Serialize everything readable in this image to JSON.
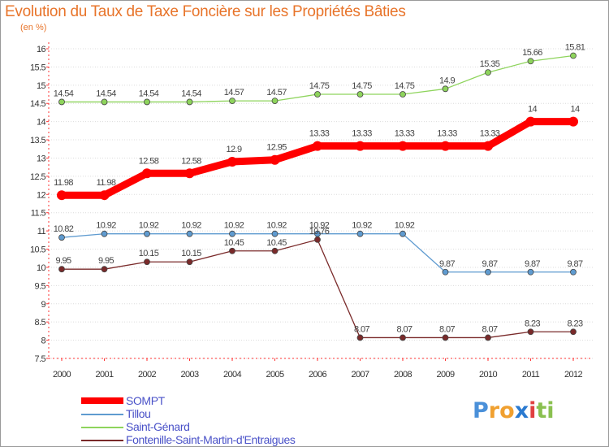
{
  "chart_data": {
    "type": "line",
    "title": "Evolution du Taux de Taxe Foncière sur les Propriétés Bâties",
    "subtitle": "(en %)",
    "ylim": [
      7.5,
      16
    ],
    "yticks": [
      7.5,
      8,
      8.5,
      9,
      9.5,
      10,
      10.5,
      11,
      11.5,
      12,
      12.5,
      13,
      13.5,
      14,
      14.5,
      15,
      15.5,
      16
    ],
    "x": [
      "2000",
      "2001",
      "2002",
      "2003",
      "2004",
      "2005",
      "2006",
      "2007",
      "2008",
      "2009",
      "2010",
      "2011",
      "2012"
    ],
    "series": [
      {
        "name": "SOMPT",
        "color": "#ff0000",
        "values": [
          11.98,
          11.98,
          12.58,
          12.58,
          12.9,
          12.95,
          13.33,
          13.33,
          13.33,
          13.33,
          13.33,
          14,
          14
        ],
        "labels": [
          "11.98",
          "11.98",
          "12.58",
          "12.58",
          "12.9",
          "12.95",
          "13.33",
          "13.33",
          "13.33",
          "13.33",
          "13.33",
          "14",
          "14"
        ]
      },
      {
        "name": "Tillou",
        "color": "#5f9bd0",
        "values": [
          10.82,
          10.92,
          10.92,
          10.92,
          10.92,
          10.92,
          10.92,
          10.92,
          10.92,
          9.87,
          9.87,
          9.87,
          9.87
        ],
        "labels": [
          "10.82",
          "10.92",
          "10.92",
          "10.92",
          "10.92",
          "10.92",
          "10.92",
          "10.92",
          "10.92",
          "9.87",
          "9.87",
          "9.87",
          "9.87"
        ]
      },
      {
        "name": "Saint-Génard",
        "color": "#8ed45c",
        "values": [
          14.54,
          14.54,
          14.54,
          14.54,
          14.57,
          14.57,
          14.75,
          14.75,
          14.75,
          14.9,
          15.35,
          15.66,
          15.81
        ],
        "labels": [
          "14.54",
          "14.54",
          "14.54",
          "14.54",
          "14.57",
          "14.57",
          "14.75",
          "14.75",
          "14.75",
          "14.9",
          "15.35",
          "15.66",
          "15.81"
        ]
      },
      {
        "name": "Fontenille-Saint-Martin-d'Entraigues",
        "color": "#7a2a2a",
        "values": [
          9.95,
          9.95,
          10.15,
          10.15,
          10.45,
          10.45,
          10.76,
          8.07,
          8.07,
          8.07,
          8.07,
          8.23,
          8.23
        ],
        "labels": [
          "9.95",
          "9.95",
          "10.15",
          "10.15",
          "10.45",
          "10.45",
          "10.76",
          "8.07",
          "8.07",
          "8.07",
          "8.07",
          "8.23",
          "8.23"
        ]
      }
    ]
  },
  "logo": {
    "letters": [
      "P",
      "r",
      "o",
      "x",
      "i",
      "t",
      "i"
    ],
    "colors": [
      "#4a90d9",
      "#f0a030",
      "#f0a030",
      "#2a7ad0",
      "#e04040",
      "#8ac050",
      "#8ac050"
    ]
  }
}
